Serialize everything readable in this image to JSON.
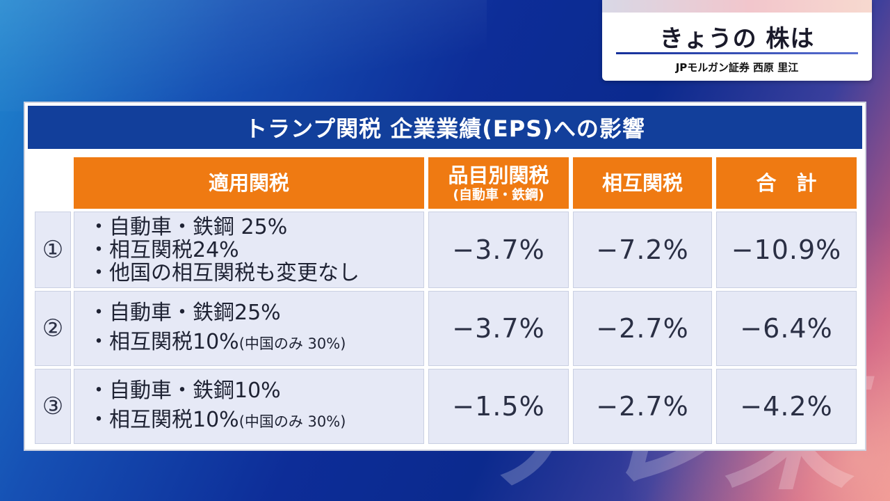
{
  "corner": {
    "title": "きょうの 株は",
    "subtitle": "JPモルガン証券 西原 里江"
  },
  "panel": {
    "title": "トランプ関税 企業業績(EPS)への影響"
  },
  "table": {
    "headers": {
      "tariff": "適用関税",
      "item": "品目別関税",
      "item_sub": "(自動車・鉄鋼)",
      "reciprocal": "相互関税",
      "total": "合　計"
    },
    "rows": [
      {
        "index": "①",
        "lines": [
          "・自動車・鉄鋼 25%",
          "・相互関税24%",
          "・他国の相互関税も変更なし"
        ],
        "item": "−3.7%",
        "reciprocal": "−7.2%",
        "total": "−10.9%"
      },
      {
        "index": "②",
        "line1": "・自動車・鉄鋼25%",
        "line2": "・相互関税10%",
        "line2_small": "(中国のみ 30%)",
        "item": "−3.7%",
        "reciprocal": "−2.7%",
        "total": "−6.4%"
      },
      {
        "index": "③",
        "line1": "・自動車・鉄鋼10%",
        "line2": "・相互関税10%",
        "line2_small": "(中国のみ 30%)",
        "item": "−1.5%",
        "reciprocal": "−2.7%",
        "total": "−4.2%"
      }
    ]
  },
  "watermark": "テレ東"
}
